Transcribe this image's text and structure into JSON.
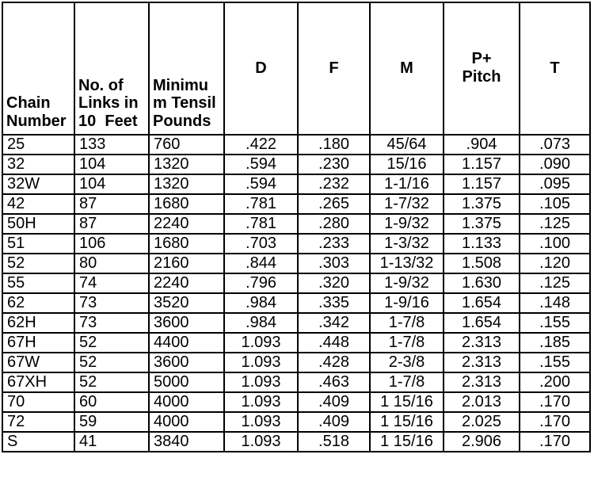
{
  "table": {
    "headers": [
      {
        "label": "Chain\nNumber"
      },
      {
        "label": "No. of\nLinks in\n10  Feet"
      },
      {
        "label": "Minimu\nm Tensil\nPounds"
      },
      {
        "label": "D"
      },
      {
        "label": "F"
      },
      {
        "label": "M"
      },
      {
        "label": "P+\nPitch"
      },
      {
        "label": "T"
      }
    ],
    "rows": [
      [
        "25",
        "133",
        "760",
        ".422",
        ".180",
        "45/64",
        ".904",
        ".073"
      ],
      [
        "32",
        "104",
        "1320",
        ".594",
        ".230",
        "15/16",
        "1.157",
        ".090"
      ],
      [
        "32W",
        "104",
        "1320",
        ".594",
        ".232",
        "1-1/16",
        "1.157",
        ".095"
      ],
      [
        "42",
        "87",
        "1680",
        ".781",
        ".265",
        "1-7/32",
        "1.375",
        ".105"
      ],
      [
        "50H",
        "87",
        "2240",
        ".781",
        ".280",
        "1-9/32",
        "1.375",
        ".125"
      ],
      [
        "51",
        "106",
        "1680",
        ".703",
        ".233",
        "1-3/32",
        "1.133",
        ".100"
      ],
      [
        "52",
        "80",
        "2160",
        ".844",
        ".303",
        "1-13/32",
        "1.508",
        ".120"
      ],
      [
        "55",
        "74",
        "2240",
        ".796",
        ".320",
        "1-9/32",
        "1.630",
        ".125"
      ],
      [
        "62",
        "73",
        "3520",
        ".984",
        ".335",
        "1-9/16",
        "1.654",
        ".148"
      ],
      [
        "62H",
        "73",
        "3600",
        ".984",
        ".342",
        "1-7/8",
        "1.654",
        ".155"
      ],
      [
        "67H",
        "52",
        "4400",
        "1.093",
        ".448",
        "1-7/8",
        "2.313",
        ".185"
      ],
      [
        "67W",
        "52",
        "3600",
        "1.093",
        ".428",
        "2-3/8",
        "2.313",
        ".155"
      ],
      [
        "67XH",
        "52",
        "5000",
        "1.093",
        ".463",
        "1-7/8",
        "2.313",
        ".200"
      ],
      [
        "70",
        "60",
        "4000",
        "1.093",
        ".409",
        "1 15/16",
        "2.013",
        ".170"
      ],
      [
        "72",
        "59",
        "4000",
        "1.093",
        ".409",
        "1 15/16",
        "2.025",
        ".170"
      ],
      [
        "S",
        "41",
        "3840",
        "1.093",
        ".518",
        "1 15/16",
        "2.906",
        ".170"
      ]
    ]
  },
  "colors": {
    "border": "#000000",
    "text": "#000000",
    "background": "#ffffff"
  }
}
